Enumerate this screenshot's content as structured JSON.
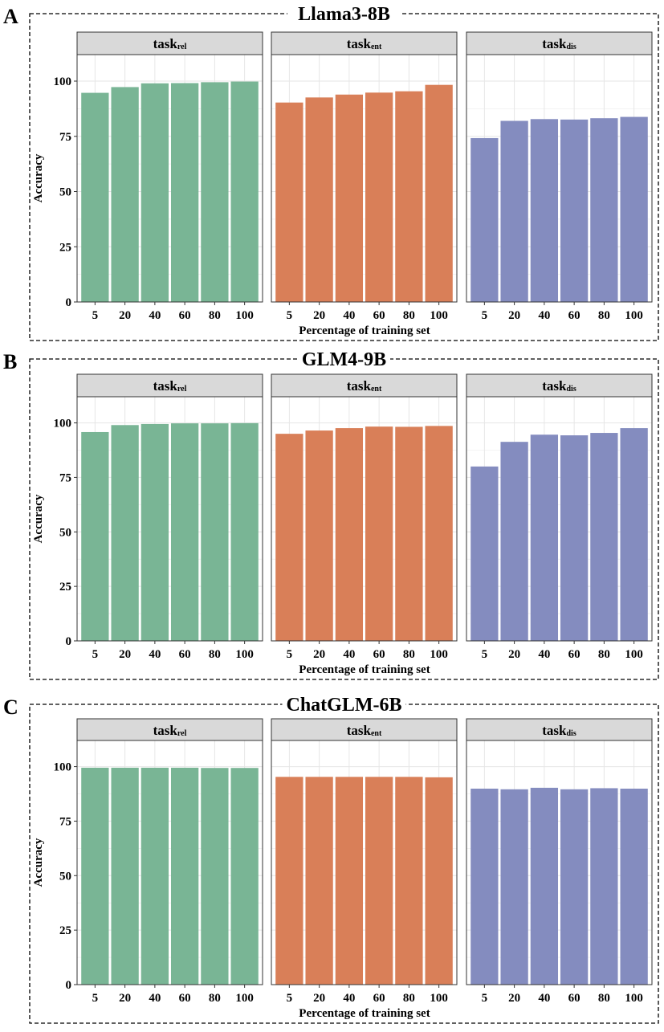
{
  "chart_data": [
    {
      "type": "bar",
      "panel_label": "A",
      "title": "Llama3-8B",
      "xlabel": "Percentage of training set",
      "ylabel": "Accuracy",
      "categories": [
        "5",
        "20",
        "40",
        "60",
        "80",
        "100"
      ],
      "y_ticks": [
        "0",
        "25",
        "50",
        "75",
        "100"
      ],
      "ylim": [
        0,
        112
      ],
      "grid": true,
      "facets": [
        {
          "label_main": "task",
          "label_sub": "rel",
          "color": "#79b595",
          "values": [
            94.7,
            97.3,
            99.0,
            99.1,
            99.5,
            99.8
          ]
        },
        {
          "label_main": "task",
          "label_sub": "ent",
          "color": "#d97f58",
          "values": [
            90.3,
            92.6,
            93.9,
            94.8,
            95.4,
            98.3
          ]
        },
        {
          "label_main": "task",
          "label_sub": "dis",
          "color": "#848cbf",
          "values": [
            74.2,
            82.0,
            82.8,
            82.6,
            83.2,
            83.8
          ]
        }
      ]
    },
    {
      "type": "bar",
      "panel_label": "B",
      "title": "GLM4-9B",
      "xlabel": "Percentage of training set",
      "ylabel": "Accuracy",
      "categories": [
        "5",
        "20",
        "40",
        "60",
        "80",
        "100"
      ],
      "y_ticks": [
        "0",
        "25",
        "50",
        "75",
        "100"
      ],
      "ylim": [
        0,
        112
      ],
      "grid": true,
      "facets": [
        {
          "label_main": "task",
          "label_sub": "rel",
          "color": "#79b595",
          "values": [
            95.8,
            99.0,
            99.5,
            99.8,
            99.8,
            99.9
          ]
        },
        {
          "label_main": "task",
          "label_sub": "ent",
          "color": "#d97f58",
          "values": [
            95.0,
            96.5,
            97.6,
            98.3,
            98.2,
            98.6
          ]
        },
        {
          "label_main": "task",
          "label_sub": "dis",
          "color": "#848cbf",
          "values": [
            80.0,
            91.3,
            94.6,
            94.3,
            95.4,
            97.6
          ]
        }
      ]
    },
    {
      "type": "bar",
      "panel_label": "C",
      "title": "ChatGLM-6B",
      "xlabel": "Percentage of training set",
      "ylabel": "Accuracy",
      "categories": [
        "5",
        "20",
        "40",
        "60",
        "80",
        "100"
      ],
      "y_ticks": [
        "0",
        "25",
        "50",
        "75",
        "100"
      ],
      "ylim": [
        0,
        112
      ],
      "grid": true,
      "facets": [
        {
          "label_main": "task",
          "label_sub": "rel",
          "color": "#79b595",
          "values": [
            99.5,
            99.5,
            99.5,
            99.5,
            99.4,
            99.4
          ]
        },
        {
          "label_main": "task",
          "label_sub": "ent",
          "color": "#d97f58",
          "values": [
            95.3,
            95.3,
            95.3,
            95.3,
            95.3,
            95.1
          ]
        },
        {
          "label_main": "task",
          "label_sub": "dis",
          "color": "#848cbf",
          "values": [
            89.9,
            89.6,
            90.3,
            89.6,
            90.1,
            89.9
          ]
        }
      ]
    }
  ]
}
